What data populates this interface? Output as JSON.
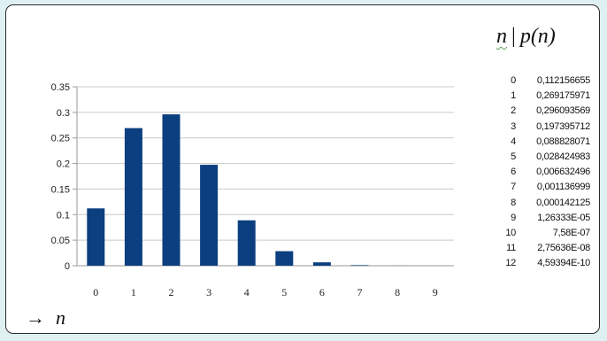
{
  "chart_data": {
    "type": "bar",
    "categories": [
      "0",
      "1",
      "2",
      "3",
      "4",
      "5",
      "6",
      "7",
      "8",
      "9"
    ],
    "values": [
      0.112156655,
      0.269175971,
      0.296093569,
      0.197395712,
      0.088828071,
      0.028424983,
      0.006632496,
      0.001136999,
      0.000142125,
      1.26333e-05
    ],
    "title": "",
    "xlabel": "n",
    "ylabel": "",
    "ylim": [
      0,
      0.35
    ],
    "yticks": [
      "0",
      "0.05",
      "0.1",
      "0.15",
      "0.2",
      "0.25",
      "0.3",
      "0.35"
    ],
    "grid": true,
    "bar_color": "#0b3f7f"
  },
  "table": {
    "header_n": "n",
    "header_sep": "|",
    "header_p": "p(n)",
    "rows": [
      {
        "n": "0",
        "p": "0,112156655"
      },
      {
        "n": "1",
        "p": "0,269175971"
      },
      {
        "n": "2",
        "p": "0,296093569"
      },
      {
        "n": "3",
        "p": "0,197395712"
      },
      {
        "n": "4",
        "p": "0,088828071"
      },
      {
        "n": "5",
        "p": "0,028424983"
      },
      {
        "n": "6",
        "p": "0,006632496"
      },
      {
        "n": "7",
        "p": "0,001136999"
      },
      {
        "n": "8",
        "p": "0,000142125"
      },
      {
        "n": "9",
        "p": "1,26333E-05"
      },
      {
        "n": "10",
        "p": "7,58E-07"
      },
      {
        "n": "11",
        "p": "2,75636E-08"
      },
      {
        "n": "12",
        "p": "4,59394E-10"
      }
    ]
  },
  "axis_note": {
    "arrow": "→",
    "variable": "n"
  }
}
